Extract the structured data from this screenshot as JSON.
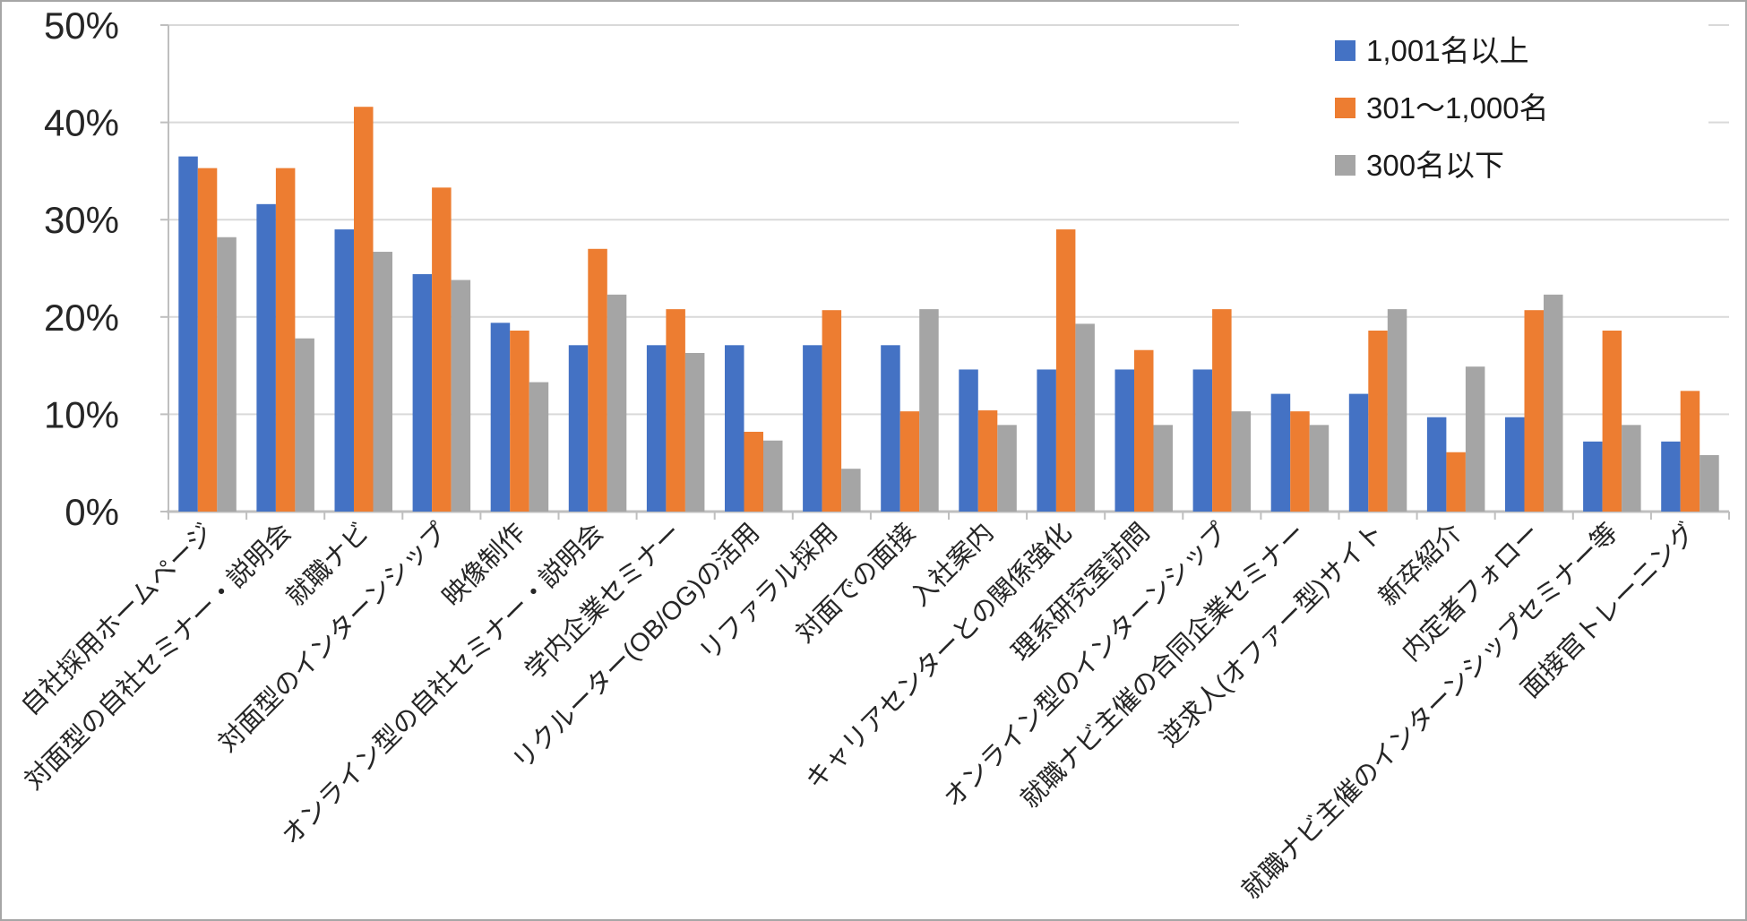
{
  "chart_data": {
    "type": "bar",
    "title": "",
    "xlabel": "",
    "ylabel": "",
    "ylim": [
      0,
      50
    ],
    "y_tick_labels": [
      "0%",
      "10%",
      "20%",
      "30%",
      "40%",
      "50%"
    ],
    "grid": "horizontal",
    "legend_position": "top-right",
    "value_unit": "percent",
    "categories": [
      "自社採用ホームページ",
      "対面型の自社セミナー・説明会",
      "就職ナビ",
      "対面型のインターンシップ",
      "映像制作",
      "オンライン型の自社セミナー・説明会",
      "学内企業セミナー",
      "リクルーター(OB/OG)の活用",
      "リファラル採用",
      "対面での面接",
      "入社案内",
      "キャリアセンターとの関係強化",
      "理系研究室訪問",
      "オンライン型のインターンシップ",
      "就職ナビ主催の合同企業セミナー",
      "逆求人(オファー型)サイト",
      "新卒紹介",
      "内定者フォロー",
      "就職ナビ主催のインターンシップセミナー等",
      "面接官トレーニング"
    ],
    "series": [
      {
        "name": "1,001名以上",
        "color": "#4472C4",
        "values": [
          36.5,
          31.6,
          29.0,
          24.4,
          19.4,
          17.1,
          17.1,
          17.1,
          17.1,
          17.1,
          14.6,
          14.6,
          14.6,
          14.6,
          12.1,
          12.1,
          9.7,
          9.7,
          7.2,
          7.2
        ]
      },
      {
        "name": "301〜1,000名",
        "color": "#ED7D31",
        "values": [
          35.3,
          35.3,
          41.6,
          33.3,
          18.6,
          27.0,
          20.8,
          8.2,
          20.7,
          10.3,
          10.4,
          29.0,
          16.6,
          20.8,
          10.3,
          18.6,
          6.1,
          20.7,
          18.6,
          12.4
        ]
      },
      {
        "name": "300名以下",
        "color": "#A5A5A5",
        "values": [
          28.2,
          17.8,
          26.7,
          23.8,
          13.3,
          22.3,
          16.3,
          7.3,
          4.4,
          20.8,
          8.9,
          19.3,
          8.9,
          10.3,
          8.9,
          20.8,
          14.9,
          22.3,
          8.9,
          5.8
        ]
      }
    ]
  },
  "style": {
    "gridline_color": "#D9D9D9",
    "axis_color": "#BFBFBF",
    "tick_color": "#BFBFBF",
    "axis_label_color": "#262626",
    "background": "#FFFFFF"
  }
}
